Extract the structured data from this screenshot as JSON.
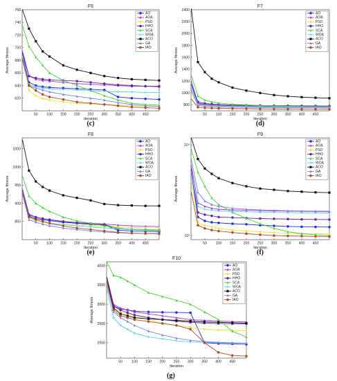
{
  "figure": {
    "captions": [
      "(c)",
      "(d)",
      "(e)",
      "(f)",
      "(g)"
    ]
  },
  "legend_entries": [
    "AO",
    "AOA",
    "PSO",
    "HHO",
    "SCA",
    "WOA",
    "ACO",
    "GA",
    "IAO"
  ],
  "colors": {
    "AO": "#1f2fd8",
    "AOA": "#b035d6",
    "PSO": "#e8e238",
    "HHO": "#5a2aa8",
    "SCA": "#45d335",
    "WOA": "#56d0e6",
    "ACO": "#111111",
    "GA": "#7b7ff0",
    "IAO": "#b24a2c"
  },
  "chart_data": [
    {
      "type": "line",
      "title": "F6",
      "xlabel": "Iteration",
      "ylabel": "Average fitness",
      "xlim": [
        0,
        500
      ],
      "ylim": [
        600,
        760
      ],
      "xticks": [
        50,
        100,
        150,
        200,
        250,
        300,
        350,
        400,
        450
      ],
      "yticks": [
        620,
        640,
        660,
        680,
        700,
        720,
        740,
        760
      ],
      "legend_position": "top-right",
      "x": [
        1,
        25,
        50,
        75,
        100,
        150,
        200,
        250,
        300,
        350,
        400,
        450,
        500
      ],
      "series": [
        {
          "name": "AO",
          "values": [
            690,
            645,
            640,
            638,
            637,
            636,
            635,
            634,
            633,
            622,
            620,
            619,
            618
          ]
        },
        {
          "name": "AOA",
          "values": [
            695,
            655,
            650,
            648,
            647,
            645,
            643,
            642,
            641,
            640,
            639,
            639,
            638
          ]
        },
        {
          "name": "PSO",
          "values": [
            688,
            632,
            624,
            619,
            617,
            614,
            612,
            611,
            610,
            609,
            608,
            607,
            607
          ]
        },
        {
          "name": "HHO",
          "values": [
            692,
            655,
            652,
            650,
            649,
            648,
            647,
            645,
            643,
            641,
            640,
            639,
            639
          ]
        },
        {
          "name": "SCA",
          "values": [
            735,
            702,
            685,
            672,
            660,
            648,
            640,
            632,
            624,
            617,
            612,
            610,
            609
          ]
        },
        {
          "name": "WOA",
          "values": [
            685,
            642,
            638,
            636,
            635,
            634,
            633,
            632,
            631,
            630,
            630,
            629,
            629
          ]
        },
        {
          "name": "ACO",
          "values": [
            760,
            730,
            710,
            694,
            686,
            672,
            665,
            660,
            655,
            652,
            650,
            649,
            648
          ]
        },
        {
          "name": "GA",
          "values": [
            680,
            640,
            636,
            633,
            630,
            626,
            623,
            620,
            617,
            613,
            610,
            608,
            607
          ]
        },
        {
          "name": "IAO",
          "values": [
            682,
            640,
            632,
            626,
            622,
            618,
            614,
            612,
            610,
            608,
            606,
            605,
            604
          ]
        }
      ]
    },
    {
      "type": "line",
      "title": "F7",
      "xlabel": "Iteration",
      "ylabel": "Average fitness",
      "xlim": [
        0,
        500
      ],
      "ylim": [
        700,
        2400
      ],
      "xticks": [
        50,
        100,
        150,
        200,
        250,
        300,
        350,
        400,
        450
      ],
      "yticks": [
        800,
        1000,
        1200,
        1400,
        1600,
        1800,
        2000,
        2200,
        2400
      ],
      "legend_position": "top-right",
      "x": [
        1,
        25,
        50,
        75,
        100,
        150,
        200,
        250,
        300,
        350,
        400,
        450,
        500
      ],
      "series": [
        {
          "name": "AO",
          "values": [
            1150,
            820,
            800,
            790,
            785,
            780,
            778,
            776,
            775,
            774,
            773,
            772,
            771
          ]
        },
        {
          "name": "AOA",
          "values": [
            1200,
            830,
            810,
            800,
            795,
            790,
            786,
            783,
            780,
            778,
            776,
            775,
            774
          ]
        },
        {
          "name": "PSO",
          "values": [
            1000,
            800,
            785,
            778,
            774,
            770,
            766,
            763,
            760,
            758,
            756,
            755,
            754
          ]
        },
        {
          "name": "HHO",
          "values": [
            1150,
            850,
            825,
            812,
            805,
            798,
            793,
            790,
            787,
            785,
            783,
            782,
            781
          ]
        },
        {
          "name": "SCA",
          "values": [
            1300,
            950,
            880,
            850,
            830,
            810,
            800,
            790,
            782,
            776,
            772,
            769,
            767
          ]
        },
        {
          "name": "WOA",
          "values": [
            1100,
            810,
            795,
            787,
            782,
            777,
            773,
            770,
            768,
            766,
            765,
            764,
            763
          ]
        },
        {
          "name": "ACO",
          "values": [
            2420,
            1520,
            1350,
            1240,
            1180,
            1090,
            1040,
            1000,
            965,
            945,
            930,
            920,
            912
          ]
        },
        {
          "name": "GA",
          "values": [
            1050,
            790,
            775,
            768,
            764,
            760,
            757,
            755,
            753,
            751,
            750,
            749,
            748
          ]
        },
        {
          "name": "IAO",
          "values": [
            900,
            760,
            750,
            745,
            742,
            738,
            735,
            732,
            730,
            728,
            727,
            726,
            725
          ]
        }
      ]
    },
    {
      "type": "line",
      "title": "F8",
      "xlabel": "Iteration",
      "ylabel": "Average fitness",
      "xlim": [
        0,
        500
      ],
      "ylim": [
        800,
        1080
      ],
      "xticks": [
        50,
        100,
        150,
        200,
        250,
        300,
        350,
        400,
        450
      ],
      "yticks": [
        850,
        900,
        950,
        1000,
        1050
      ],
      "legend_position": "top-right",
      "x": [
        1,
        25,
        50,
        75,
        100,
        150,
        200,
        250,
        300,
        350,
        400,
        450,
        500
      ],
      "series": [
        {
          "name": "AO",
          "values": [
            935,
            865,
            858,
            855,
            852,
            848,
            845,
            842,
            840,
            826,
            824,
            823,
            822
          ]
        },
        {
          "name": "AOA",
          "values": [
            940,
            870,
            862,
            858,
            855,
            850,
            847,
            845,
            843,
            840,
            838,
            837,
            836
          ]
        },
        {
          "name": "PSO",
          "values": [
            930,
            860,
            852,
            848,
            845,
            842,
            840,
            838,
            836,
            835,
            834,
            833,
            833
          ]
        },
        {
          "name": "HHO",
          "values": [
            935,
            868,
            862,
            858,
            855,
            850,
            847,
            844,
            842,
            830,
            828,
            827,
            826
          ]
        },
        {
          "name": "SCA",
          "values": [
            975,
            920,
            900,
            888,
            878,
            862,
            852,
            845,
            838,
            832,
            828,
            826,
            825
          ]
        },
        {
          "name": "WOA",
          "values": [
            932,
            862,
            855,
            850,
            846,
            841,
            838,
            835,
            832,
            830,
            829,
            828,
            827
          ]
        },
        {
          "name": "ACO",
          "values": [
            1075,
            990,
            960,
            945,
            935,
            922,
            915,
            908,
            898,
            895,
            894,
            893,
            893
          ]
        },
        {
          "name": "GA",
          "values": [
            925,
            855,
            848,
            843,
            838,
            832,
            828,
            824,
            821,
            819,
            818,
            817,
            817
          ]
        },
        {
          "name": "IAO",
          "values": [
            930,
            862,
            855,
            850,
            845,
            838,
            832,
            828,
            824,
            820,
            818,
            817,
            816
          ]
        }
      ]
    },
    {
      "type": "line",
      "title": "F9",
      "xlabel": "Iteration",
      "ylabel": "Average fitness",
      "xlim": [
        0,
        500
      ],
      "ylim": [
        900,
        12000
      ],
      "log_y": true,
      "xticks": [
        50,
        100,
        150,
        200,
        250,
        300,
        350,
        400,
        450
      ],
      "yticks_labeled": [
        {
          "value": 1000,
          "label": "10³"
        },
        {
          "value": 10000,
          "label": "10⁴"
        }
      ],
      "legend_position": "top-right",
      "x": [
        1,
        25,
        50,
        75,
        100,
        150,
        200,
        250,
        300,
        350,
        400,
        450,
        500
      ],
      "series": [
        {
          "name": "AO",
          "values": [
            5000,
            1600,
            1450,
            1400,
            1380,
            1350,
            1330,
            1300,
            1280,
            1260,
            1250,
            1245,
            1240
          ]
        },
        {
          "name": "AOA",
          "values": [
            6000,
            2300,
            2100,
            2000,
            1950,
            1920,
            1900,
            1880,
            1870,
            1860,
            1850,
            1845,
            1840
          ]
        },
        {
          "name": "PSO",
          "values": [
            4000,
            1400,
            1300,
            1250,
            1200,
            1150,
            1120,
            1100,
            1080,
            1060,
            1050,
            1045,
            1040
          ]
        },
        {
          "name": "HHO",
          "values": [
            5500,
            1800,
            1700,
            1650,
            1600,
            1580,
            1560,
            1540,
            1530,
            1520,
            1510,
            1505,
            1500
          ]
        },
        {
          "name": "SCA",
          "values": [
            9000,
            5000,
            3500,
            2600,
            2200,
            1800,
            1550,
            1350,
            1200,
            1100,
            1050,
            1020,
            1000
          ]
        },
        {
          "name": "WOA",
          "values": [
            5000,
            2100,
            1950,
            1900,
            1870,
            1850,
            1830,
            1810,
            1800,
            1790,
            1780,
            1775,
            1770
          ]
        },
        {
          "name": "ACO",
          "values": [
            12000,
            7000,
            5500,
            4800,
            4300,
            3800,
            3500,
            3300,
            3200,
            3100,
            3050,
            3000,
            2980
          ]
        },
        {
          "name": "GA",
          "values": [
            7000,
            3000,
            2400,
            2200,
            2100,
            2000,
            1950,
            1920,
            1900,
            1880,
            1870,
            1865,
            1860
          ]
        },
        {
          "name": "IAO",
          "values": [
            3000,
            1300,
            1200,
            1150,
            1120,
            1080,
            1050,
            1020,
            1000,
            990,
            985,
            980,
            975
          ]
        }
      ]
    },
    {
      "type": "line",
      "title": "F10",
      "xlabel": "Iteration",
      "ylabel": "Average fitness",
      "xlim": [
        0,
        500
      ],
      "ylim": [
        1600,
        4100
      ],
      "xticks": [
        50,
        100,
        150,
        200,
        250,
        300,
        350,
        400,
        450
      ],
      "yticks": [
        2000,
        2500,
        3000,
        3500,
        4000
      ],
      "legend_position": "top-right",
      "x": [
        1,
        25,
        50,
        75,
        100,
        150,
        200,
        250,
        300,
        350,
        400,
        450,
        500
      ],
      "series": [
        {
          "name": "AO",
          "values": [
            3600,
            2950,
            2880,
            2850,
            2820,
            2800,
            2790,
            2785,
            2780,
            2000,
            1980,
            1970,
            1960
          ]
        },
        {
          "name": "AOA",
          "values": [
            3700,
            3000,
            2900,
            2850,
            2800,
            2750,
            2700,
            2650,
            2600,
            2580,
            2560,
            2550,
            2540
          ]
        },
        {
          "name": "PSO",
          "values": [
            3500,
            2900,
            2800,
            2750,
            2700,
            2600,
            2500,
            2450,
            2400,
            2350,
            2330,
            2320,
            2310
          ]
        },
        {
          "name": "HHO",
          "values": [
            3600,
            2950,
            2850,
            2780,
            2720,
            2650,
            2600,
            2560,
            2530,
            2510,
            2500,
            2495,
            2490
          ]
        },
        {
          "name": "SCA",
          "values": [
            4100,
            3750,
            3700,
            3600,
            3500,
            3300,
            3200,
            3100,
            3000,
            2800,
            2600,
            2300,
            2150
          ]
        },
        {
          "name": "WOA",
          "values": [
            3400,
            2650,
            2450,
            2350,
            2250,
            2150,
            2100,
            2050,
            2020,
            2010,
            2000,
            1995,
            1990
          ]
        },
        {
          "name": "ACO",
          "values": [
            3700,
            2900,
            2750,
            2700,
            2650,
            2620,
            2600,
            2580,
            2560,
            2540,
            2530,
            2520,
            2510
          ]
        },
        {
          "name": "GA",
          "values": [
            3500,
            2800,
            2650,
            2550,
            2450,
            2300,
            2200,
            2120,
            2060,
            2030,
            2010,
            2000,
            1990
          ]
        },
        {
          "name": "IAO",
          "values": [
            3600,
            2850,
            2700,
            2650,
            2600,
            2550,
            2500,
            2450,
            2350,
            2000,
            1750,
            1670,
            1650
          ]
        }
      ]
    }
  ]
}
